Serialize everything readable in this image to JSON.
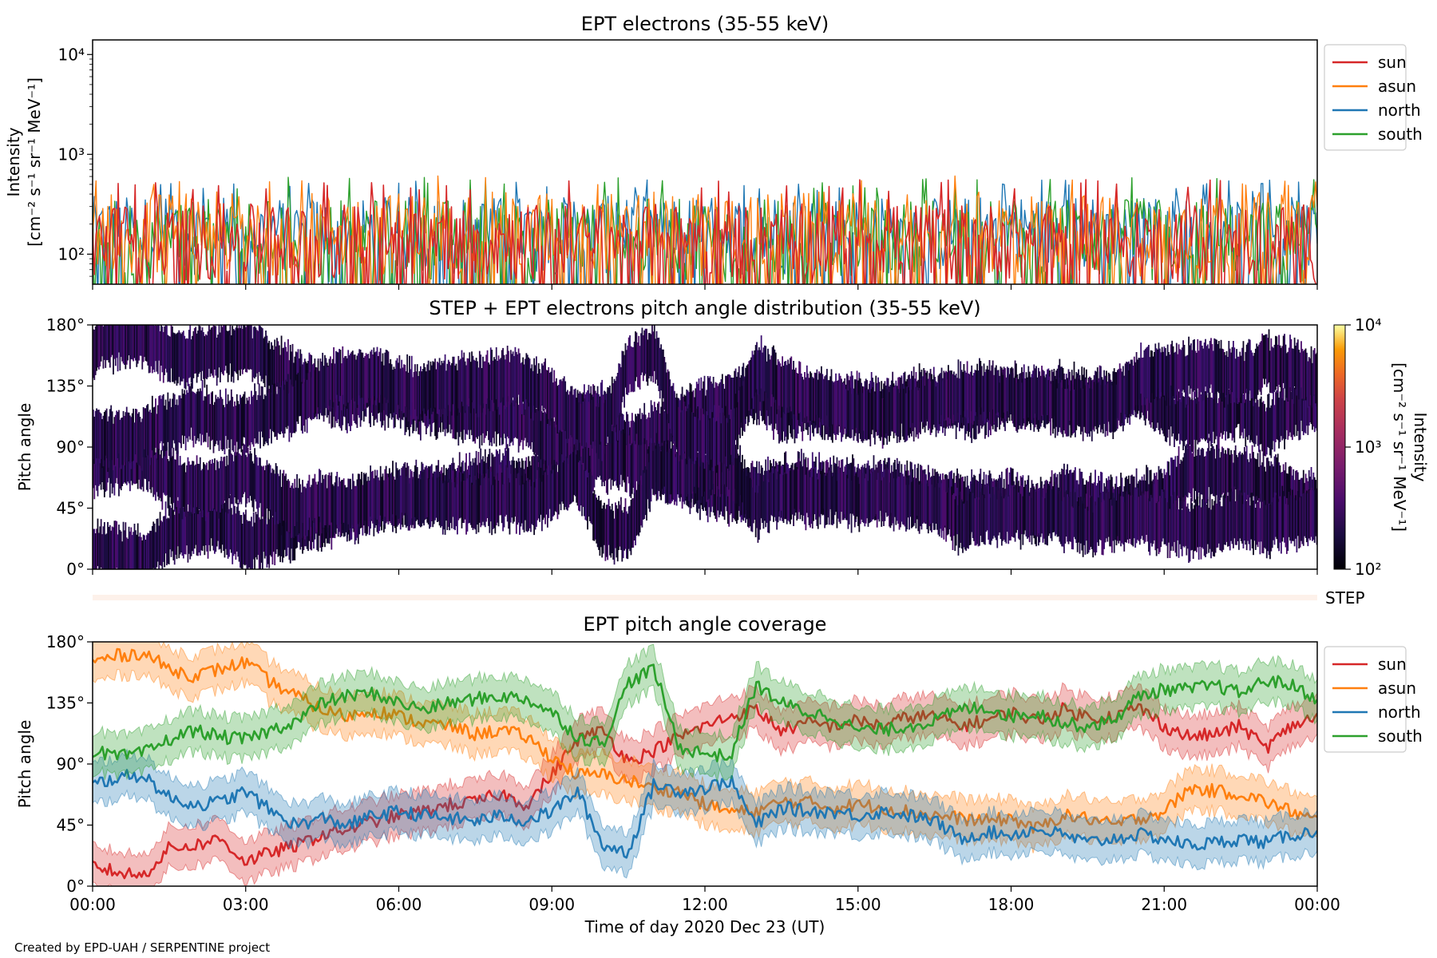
{
  "footer": "Created by EPD-UAH / SERPENTINE project",
  "colors": {
    "sun": "#d62728",
    "asun": "#ff7f0e",
    "north": "#1f77b4",
    "south": "#2ca02c"
  },
  "chart_data": [
    {
      "type": "line",
      "title": "EPT electrons (35-55 keV)",
      "ylabel_line1": "Intensity",
      "ylabel_line2": "[cm⁻² s⁻¹ sr⁻¹ MeV⁻¹]",
      "yscale": "log",
      "ylim": [
        50,
        14000
      ],
      "yticks": [
        {
          "v": 100,
          "label": "10²"
        },
        {
          "v": 1000,
          "label": "10³"
        },
        {
          "v": 10000,
          "label": "10⁴"
        }
      ],
      "xlim_hours": [
        0,
        24
      ],
      "legend_placement": "outside-top-right",
      "series": [
        {
          "name": "sun",
          "typical_range": [
            50,
            320
          ],
          "peak": 560
        },
        {
          "name": "asun",
          "typical_range": [
            60,
            420
          ],
          "peak": 620
        },
        {
          "name": "north",
          "typical_range": [
            60,
            380
          ],
          "peak": 560
        },
        {
          "name": "south",
          "typical_range": [
            50,
            360
          ],
          "peak": 600
        }
      ]
    },
    {
      "type": "heatmap",
      "title": "STEP + EPT electrons pitch angle distribution (35-55 keV)",
      "ylabel": "Pitch angle",
      "ylim": [
        0,
        180
      ],
      "yticks": [
        "0°",
        "45°",
        "90°",
        "135°",
        "180°"
      ],
      "xlim_hours": [
        0,
        24
      ],
      "colorbar": {
        "scale": "log",
        "range": [
          100,
          10000
        ],
        "ticks": [
          {
            "v": 100,
            "label": "10²"
          },
          {
            "v": 1000,
            "label": "10³"
          },
          {
            "v": 10000,
            "label": "10⁴"
          }
        ],
        "label_line1": "Intensity",
        "label_line2": "[cm⁻² s⁻¹ sr⁻¹ MeV⁻¹]",
        "colormap": "inferno"
      },
      "step_strip_label": "STEP"
    },
    {
      "type": "line",
      "title": "EPT pitch angle coverage",
      "ylabel": "Pitch angle",
      "ylim": [
        0,
        180
      ],
      "yticks": [
        "0°",
        "45°",
        "90°",
        "135°",
        "180°"
      ],
      "xlabel": "Time of day 2020 Dec 23 (UT)",
      "xticks": [
        "00:00",
        "03:00",
        "06:00",
        "09:00",
        "12:00",
        "15:00",
        "18:00",
        "21:00",
        "00:00"
      ],
      "xlim_hours": [
        0,
        24
      ],
      "band_halfwidth_deg": 15,
      "legend_placement": "outside-top-right",
      "series": [
        {
          "name": "sun",
          "x": [
            0,
            0.5,
            1,
            1.5,
            2,
            2.5,
            3,
            3.5,
            4,
            4.5,
            5,
            5.5,
            6,
            6.5,
            7,
            7.5,
            8,
            8.5,
            9,
            9.5,
            10,
            10.5,
            11,
            11.5,
            12,
            12.5,
            13,
            13.5,
            14,
            14.5,
            15,
            15.5,
            16,
            16.5,
            17,
            17.5,
            18,
            18.5,
            19,
            19.5,
            20,
            20.5,
            21,
            21.5,
            22,
            22.5,
            23,
            23.5,
            24
          ],
          "y": [
            15,
            10,
            8,
            28,
            30,
            35,
            18,
            25,
            30,
            38,
            42,
            48,
            52,
            55,
            60,
            62,
            68,
            60,
            82,
            108,
            115,
            92,
            100,
            110,
            118,
            125,
            130,
            115,
            120,
            118,
            122,
            118,
            125,
            125,
            118,
            122,
            128,
            122,
            130,
            125,
            125,
            132,
            118,
            110,
            112,
            118,
            102,
            118,
            125
          ]
        },
        {
          "name": "asun",
          "x": [
            0,
            0.5,
            1,
            1.5,
            2,
            2.5,
            3,
            3.5,
            4,
            4.5,
            5,
            5.5,
            6,
            6.5,
            7,
            7.5,
            8,
            8.5,
            9,
            9.5,
            10,
            10.5,
            11,
            11.5,
            12,
            12.5,
            13,
            13.5,
            14,
            14.5,
            15,
            15.5,
            16,
            16.5,
            17,
            17.5,
            18,
            18.5,
            19,
            19.5,
            20,
            20.5,
            21,
            21.5,
            22,
            22.5,
            23,
            23.5,
            24
          ],
          "y": [
            165,
            170,
            172,
            160,
            155,
            160,
            165,
            150,
            140,
            130,
            125,
            130,
            125,
            120,
            118,
            112,
            115,
            110,
            95,
            82,
            82,
            78,
            72,
            70,
            60,
            55,
            55,
            62,
            62,
            58,
            60,
            58,
            55,
            52,
            50,
            48,
            50,
            42,
            52,
            50,
            45,
            50,
            55,
            72,
            70,
            68,
            62,
            55,
            48
          ]
        },
        {
          "name": "north",
          "x": [
            0,
            0.5,
            1,
            1.5,
            2,
            2.5,
            3,
            3.5,
            4,
            4.5,
            5,
            5.5,
            6,
            6.5,
            7,
            7.5,
            8,
            8.5,
            9,
            9.5,
            10,
            10.5,
            11,
            11.5,
            12,
            12.5,
            13,
            13.5,
            14,
            14.5,
            15,
            15.5,
            16,
            16.5,
            17,
            17.5,
            18,
            18.5,
            19,
            19.5,
            20,
            20.5,
            21,
            21.5,
            22,
            22.5,
            23,
            23.5,
            24
          ],
          "y": [
            75,
            80,
            82,
            65,
            60,
            62,
            70,
            55,
            45,
            50,
            45,
            52,
            55,
            52,
            50,
            48,
            52,
            48,
            55,
            70,
            30,
            25,
            75,
            70,
            72,
            78,
            45,
            58,
            55,
            55,
            52,
            55,
            52,
            48,
            35,
            40,
            38,
            42,
            38,
            32,
            35,
            38,
            35,
            30,
            32,
            35,
            32,
            38,
            40
          ]
        },
        {
          "name": "south",
          "x": [
            0,
            0.5,
            1,
            1.5,
            2,
            2.5,
            3,
            3.5,
            4,
            4.5,
            5,
            5.5,
            6,
            6.5,
            7,
            7.5,
            8,
            8.5,
            9,
            9.5,
            10,
            10.5,
            11,
            11.5,
            12,
            12.5,
            13,
            13.5,
            14,
            14.5,
            15,
            15.5,
            16,
            16.5,
            17,
            17.5,
            18,
            18.5,
            19,
            19.5,
            20,
            20.5,
            21,
            21.5,
            22,
            22.5,
            23,
            23.5,
            24
          ],
          "y": [
            100,
            95,
            98,
            108,
            115,
            110,
            108,
            115,
            122,
            135,
            140,
            142,
            135,
            130,
            135,
            138,
            140,
            138,
            128,
            110,
            105,
            150,
            160,
            102,
            98,
            95,
            148,
            135,
            128,
            125,
            115,
            115,
            118,
            122,
            130,
            132,
            125,
            128,
            120,
            118,
            122,
            140,
            145,
            145,
            148,
            142,
            152,
            148,
            138
          ]
        }
      ]
    }
  ]
}
